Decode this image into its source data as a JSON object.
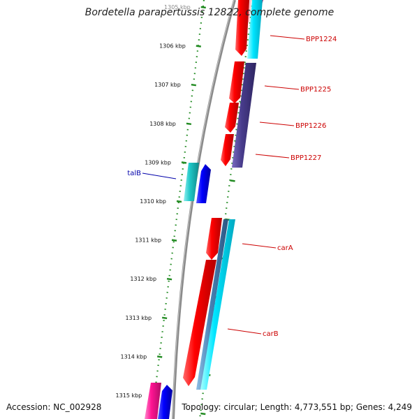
{
  "title": "Bordetella parapertussis 12822, complete genome",
  "footer": {
    "accession": "Accession: NC_002928",
    "summary": "Topology: circular; Length: 4,773,551 bp; Genes: 4,249"
  },
  "kbp_ticks": [
    {
      "label": "1305 kbp",
      "pos": 1305
    },
    {
      "label": "1306 kbp",
      "pos": 1306
    },
    {
      "label": "1307 kbp",
      "pos": 1307
    },
    {
      "label": "1308 kbp",
      "pos": 1308
    },
    {
      "label": "1309 kbp",
      "pos": 1309
    },
    {
      "label": "1310 kbp",
      "pos": 1310
    },
    {
      "label": "1311 kbp",
      "pos": 1311
    },
    {
      "label": "1312 kbp",
      "pos": 1312
    },
    {
      "label": "1313 kbp",
      "pos": 1313
    },
    {
      "label": "1314 kbp",
      "pos": 1314
    },
    {
      "label": "1315 kbp",
      "pos": 1315
    }
  ],
  "genes": [
    {
      "label": "BPP1224",
      "color": "#cc0000",
      "track": "forward"
    },
    {
      "label": "BPP1225",
      "color": "#cc0000",
      "track": "forward"
    },
    {
      "label": "BPP1226",
      "color": "#cc0000",
      "track": "forward"
    },
    {
      "label": "BPP1227",
      "color": "#cc0000",
      "track": "forward"
    },
    {
      "label": "talB",
      "color": "#0000aa",
      "track": "reverse"
    },
    {
      "label": "carA",
      "color": "#cc0000",
      "track": "forward"
    },
    {
      "label": "carB",
      "color": "#cc0000",
      "track": "forward"
    }
  ],
  "colors": {
    "backbone": "#808080",
    "tick": "#228b22",
    "cds_forward": "#ff0000",
    "cyan_feature": "#00d8e0",
    "purple_feature": "#4b3c8c",
    "blue_feature": "#0000ff",
    "teal_feature": "#20c0c0",
    "magenta_feature": "#ff1493",
    "steel_feature": "#4682b4"
  }
}
